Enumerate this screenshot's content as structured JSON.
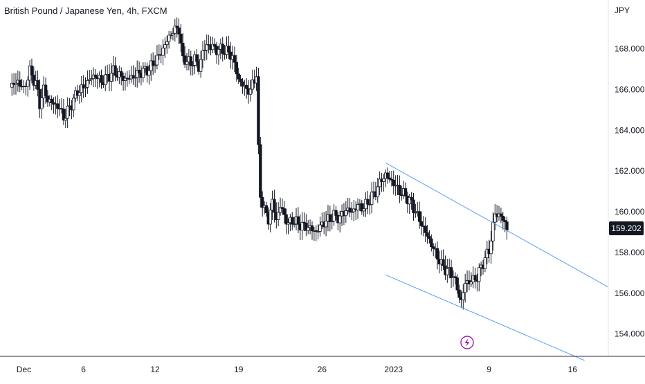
{
  "header": {
    "title": "British Pound / Japanese Yen, 4h, FXCM",
    "currency": "JPY",
    "last_price": "159.202"
  },
  "colors": {
    "candle": "#131722",
    "trendline": "#5b9cf6",
    "axis": "#2a2e39",
    "event_icon": "#9c27b0"
  },
  "icons": {
    "event": "lightning-icon"
  },
  "chart_data": {
    "type": "candlestick",
    "title": "British Pound / Japanese Yen, 4h, FXCM",
    "ylabel": "JPY",
    "ylim": [
      152.9,
      170.4
    ],
    "yticks": [
      "154.000",
      "156.000",
      "158.000",
      "160.000",
      "162.000",
      "164.000",
      "166.000",
      "168.000"
    ],
    "xticks": [
      "Dec",
      "6",
      "12",
      "19",
      "26",
      "2023",
      "9",
      "16"
    ],
    "xlim": [
      "2022-11-29",
      "2023-01-19"
    ],
    "last_price": 159.202,
    "grid": false,
    "close_path": [
      [
        "2022-11-30 00:00",
        166.2
      ],
      [
        "2022-11-30 12:00",
        166.4
      ],
      [
        "2022-12-01 00:00",
        166.0
      ],
      [
        "2022-12-01 12:00",
        166.9
      ],
      [
        "2022-12-02 00:00",
        166.3
      ],
      [
        "2022-12-02 08:00",
        165.3
      ],
      [
        "2022-12-02 16:00",
        166.0
      ],
      [
        "2022-12-03 00:00",
        165.5
      ],
      [
        "2022-12-04 00:00",
        165.1
      ],
      [
        "2022-12-04 08:00",
        164.6
      ],
      [
        "2022-12-05 00:00",
        165.3
      ],
      [
        "2022-12-05 12:00",
        165.9
      ],
      [
        "2022-12-06 00:00",
        166.1
      ],
      [
        "2022-12-06 12:00",
        166.5
      ],
      [
        "2022-12-07 00:00",
        166.7
      ],
      [
        "2022-12-07 12:00",
        166.4
      ],
      [
        "2022-12-08 00:00",
        166.6
      ],
      [
        "2022-12-08 12:00",
        166.9
      ],
      [
        "2022-12-09 00:00",
        166.7
      ],
      [
        "2022-12-09 12:00",
        166.5
      ],
      [
        "2022-12-10 00:00",
        166.6
      ],
      [
        "2022-12-11 00:00",
        166.9
      ],
      [
        "2022-12-11 12:00",
        167.0
      ],
      [
        "2022-12-12 00:00",
        167.4
      ],
      [
        "2022-12-12 12:00",
        167.8
      ],
      [
        "2022-12-13 00:00",
        168.4
      ],
      [
        "2022-12-13 12:00",
        168.9
      ],
      [
        "2022-12-14 00:00",
        169.0
      ],
      [
        "2022-12-14 08:00",
        167.4
      ],
      [
        "2022-12-14 16:00",
        167.5
      ],
      [
        "2022-12-15 00:00",
        167.2
      ],
      [
        "2022-12-15 08:00",
        167.6
      ],
      [
        "2022-12-15 16:00",
        167.0
      ],
      [
        "2022-12-16 00:00",
        167.9
      ],
      [
        "2022-12-16 12:00",
        168.2
      ],
      [
        "2022-12-17 00:00",
        168.0
      ],
      [
        "2022-12-18 00:00",
        167.9
      ],
      [
        "2022-12-18 12:00",
        167.6
      ],
      [
        "2022-12-19 00:00",
        166.5
      ],
      [
        "2022-12-19 12:00",
        166.1
      ],
      [
        "2022-12-20 00:00",
        165.9
      ],
      [
        "2022-12-20 06:00",
        166.5
      ],
      [
        "2022-12-20 12:00",
        166.7
      ],
      [
        "2022-12-20 16:00",
        163.0
      ],
      [
        "2022-12-20 20:00",
        160.8
      ],
      [
        "2022-12-21 04:00",
        160.1
      ],
      [
        "2022-12-21 12:00",
        159.6
      ],
      [
        "2022-12-21 20:00",
        160.5
      ],
      [
        "2022-12-22 04:00",
        159.6
      ],
      [
        "2022-12-22 12:00",
        160.3
      ],
      [
        "2022-12-22 20:00",
        159.8
      ],
      [
        "2022-12-23 04:00",
        159.4
      ],
      [
        "2022-12-23 12:00",
        159.6
      ],
      [
        "2022-12-24 00:00",
        159.4
      ],
      [
        "2022-12-25 00:00",
        159.2
      ],
      [
        "2022-12-25 12:00",
        159.0
      ],
      [
        "2022-12-26 00:00",
        159.4
      ],
      [
        "2022-12-26 12:00",
        159.6
      ],
      [
        "2022-12-27 00:00",
        159.8
      ],
      [
        "2022-12-27 12:00",
        159.7
      ],
      [
        "2022-12-28 00:00",
        160.1
      ],
      [
        "2022-12-28 12:00",
        160.0
      ],
      [
        "2022-12-29 00:00",
        160.3
      ],
      [
        "2022-12-29 12:00",
        160.2
      ],
      [
        "2022-12-30 00:00",
        160.6
      ],
      [
        "2022-12-30 12:00",
        161.0
      ],
      [
        "2022-12-31 00:00",
        161.6
      ],
      [
        "2022-12-31 08:00",
        161.8
      ],
      [
        "2023-01-01 00:00",
        161.4
      ],
      [
        "2023-01-01 12:00",
        161.0
      ],
      [
        "2023-01-02 00:00",
        160.8
      ],
      [
        "2023-01-02 12:00",
        160.4
      ],
      [
        "2023-01-03 00:00",
        159.8
      ],
      [
        "2023-01-03 12:00",
        159.2
      ],
      [
        "2023-01-04 00:00",
        158.6
      ],
      [
        "2023-01-04 12:00",
        158.0
      ],
      [
        "2023-01-05 00:00",
        157.4
      ],
      [
        "2023-01-05 12:00",
        157.1
      ],
      [
        "2023-01-06 00:00",
        156.9
      ],
      [
        "2023-01-06 08:00",
        156.2
      ],
      [
        "2023-01-06 16:00",
        155.6
      ],
      [
        "2023-01-07 00:00",
        156.5
      ],
      [
        "2023-01-07 12:00",
        156.6
      ],
      [
        "2023-01-08 00:00",
        156.8
      ],
      [
        "2023-01-08 12:00",
        157.5
      ],
      [
        "2023-01-09 00:00",
        158.1
      ],
      [
        "2023-01-09 12:00",
        159.9
      ],
      [
        "2023-01-10 00:00",
        159.8
      ],
      [
        "2023-01-10 12:00",
        159.2
      ]
    ],
    "trendlines": [
      {
        "points": [
          [
            "2022-12-31 08:00",
            162.4
          ],
          [
            "2023-01-19 00:00",
            156.3
          ]
        ]
      },
      {
        "points": [
          [
            "2022-12-31 08:00",
            156.9
          ],
          [
            "2023-01-17 00:00",
            152.7
          ]
        ]
      }
    ]
  }
}
